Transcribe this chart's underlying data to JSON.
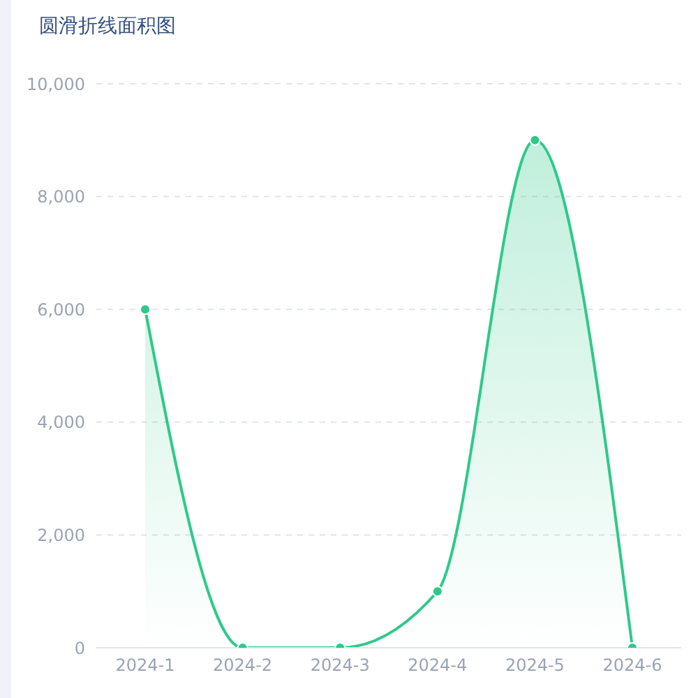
{
  "chart_data": {
    "type": "area",
    "title": "圆滑折线面积图",
    "categories": [
      "2024-1",
      "2024-2",
      "2024-3",
      "2024-4",
      "2024-5",
      "2024-6"
    ],
    "values": [
      6000,
      0,
      0,
      1000,
      9000,
      0
    ],
    "color": "#2ec98a",
    "ylim": [
      0,
      10000
    ],
    "yticks": [
      {
        "value": 0,
        "label": "0"
      },
      {
        "value": 2000,
        "label": "2,000"
      },
      {
        "value": 4000,
        "label": "4,000"
      },
      {
        "value": 6000,
        "label": "6,000"
      },
      {
        "value": 8000,
        "label": "8,000"
      },
      {
        "value": 10000,
        "label": "10,000"
      }
    ],
    "grid": "y",
    "marker": "circle"
  }
}
